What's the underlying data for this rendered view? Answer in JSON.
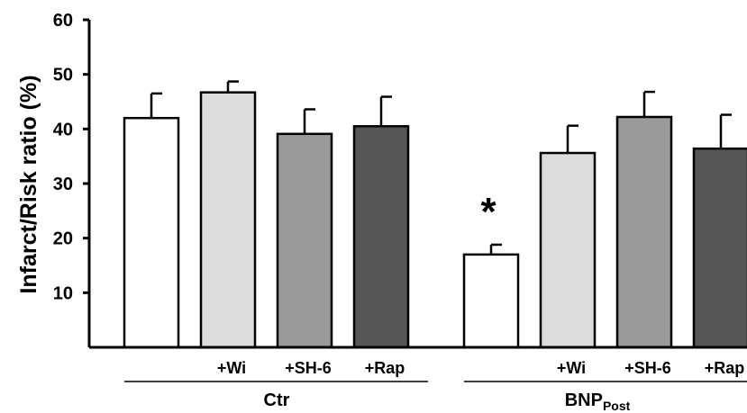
{
  "chart_data": {
    "type": "bar",
    "title": "",
    "ylabel": "Infarct/Risk ratio (%)",
    "xlabel": "",
    "ylim": [
      0,
      60
    ],
    "yticks": [
      10,
      20,
      30,
      40,
      50,
      60
    ],
    "grid": false,
    "error_bars": true,
    "groups": [
      {
        "name": "Ctr",
        "name_main": "Ctr",
        "name_sub": "",
        "bars": [
          {
            "label": "",
            "value": 42,
            "error": 4.5,
            "color": "#ffffff",
            "annotation": ""
          },
          {
            "label": "+Wi",
            "value": 46.7,
            "error": 2,
            "color": "#dcdcdc",
            "annotation": ""
          },
          {
            "label": "+SH-6",
            "value": 39.1,
            "error": 4.5,
            "color": "#9a9a9a",
            "annotation": ""
          },
          {
            "label": "+Rap",
            "value": 40.5,
            "error": 5.4,
            "color": "#565656",
            "annotation": ""
          }
        ]
      },
      {
        "name": "BNPPost",
        "name_main": "BNP",
        "name_sub": "Post",
        "bars": [
          {
            "label": "",
            "value": 17,
            "error": 1.8,
            "color": "#ffffff",
            "annotation": "*"
          },
          {
            "label": "+Wi",
            "value": 35.6,
            "error": 5,
            "color": "#dcdcdc",
            "annotation": ""
          },
          {
            "label": "+SH-6",
            "value": 42.2,
            "error": 4.6,
            "color": "#9a9a9a",
            "annotation": ""
          },
          {
            "label": "+Rap",
            "value": 36.4,
            "error": 6.2,
            "color": "#565656",
            "annotation": ""
          }
        ]
      }
    ]
  }
}
